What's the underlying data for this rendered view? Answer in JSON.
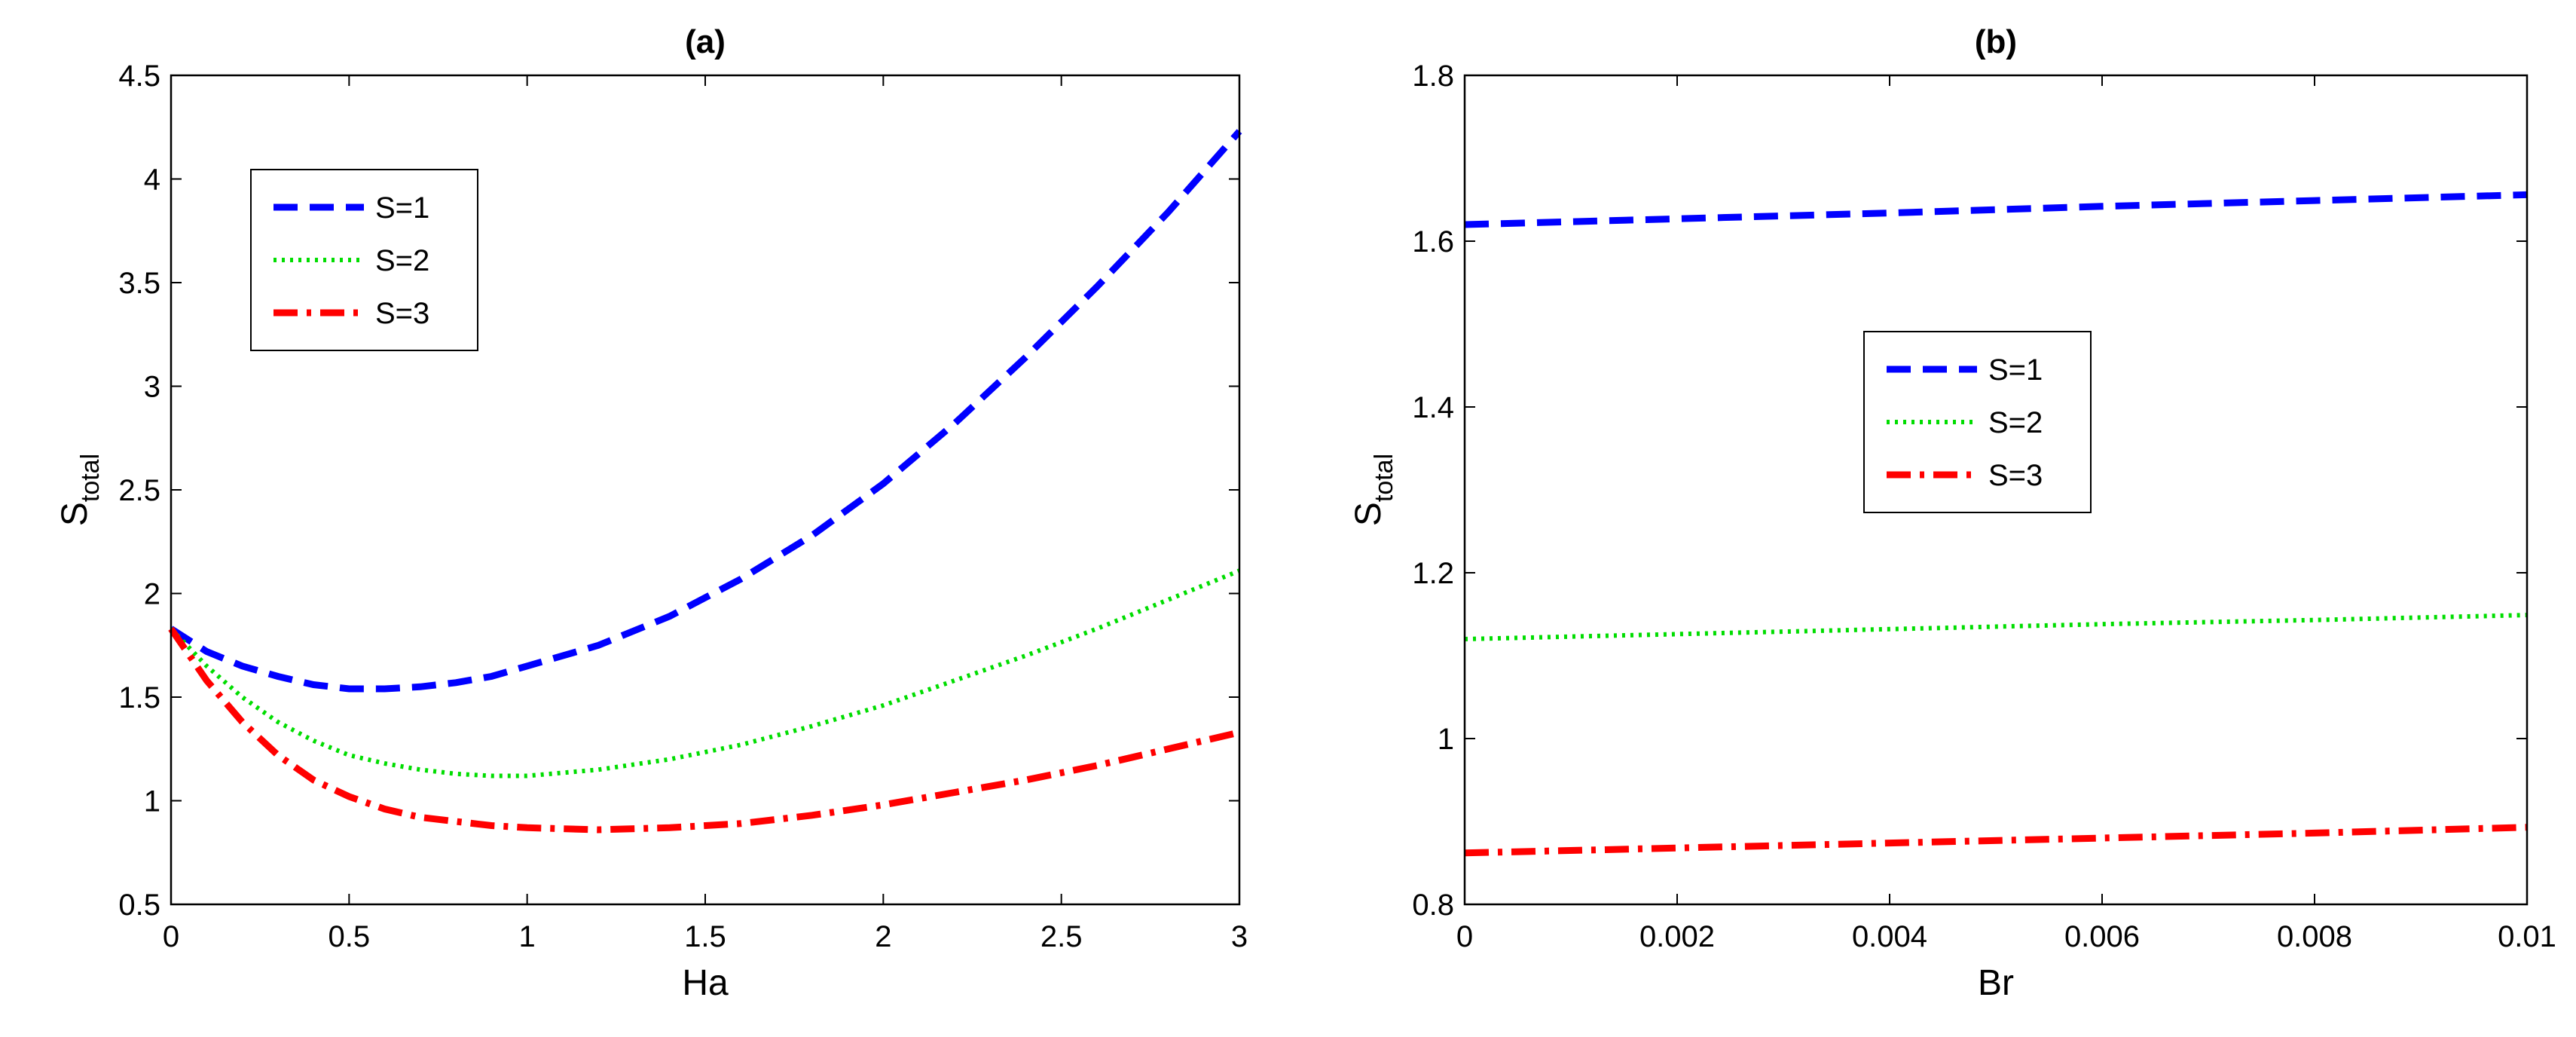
{
  "chart_data": [
    {
      "type": "line",
      "title": "(a)",
      "xlabel": "Ha",
      "ylabel": "S",
      "ylabel_sub": "total",
      "xlim": [
        0,
        3
      ],
      "ylim": [
        0.5,
        4.5
      ],
      "x_ticks": [
        0,
        0.5,
        1,
        1.5,
        2,
        2.5,
        3
      ],
      "y_ticks": [
        0.5,
        1,
        1.5,
        2,
        2.5,
        3,
        3.5,
        4,
        4.5
      ],
      "grid": false,
      "legend_position": "upper-left",
      "series": [
        {
          "name": "S=1",
          "color": "#0000ff",
          "style": "dashed",
          "x": [
            0,
            0.1,
            0.2,
            0.3,
            0.4,
            0.5,
            0.6,
            0.7,
            0.8,
            0.9,
            1.0,
            1.2,
            1.4,
            1.6,
            1.8,
            2.0,
            2.2,
            2.4,
            2.6,
            2.8,
            3.0
          ],
          "y": [
            1.83,
            1.72,
            1.65,
            1.6,
            1.56,
            1.54,
            1.54,
            1.55,
            1.57,
            1.6,
            1.65,
            1.75,
            1.89,
            2.07,
            2.28,
            2.53,
            2.82,
            3.14,
            3.48,
            3.84,
            4.23
          ]
        },
        {
          "name": "S=2",
          "color": "#00dd00",
          "style": "dotted",
          "x": [
            0,
            0.1,
            0.2,
            0.3,
            0.4,
            0.5,
            0.6,
            0.7,
            0.8,
            0.9,
            1.0,
            1.2,
            1.4,
            1.6,
            1.8,
            2.0,
            2.2,
            2.4,
            2.6,
            2.8,
            3.0
          ],
          "y": [
            1.83,
            1.65,
            1.5,
            1.38,
            1.29,
            1.22,
            1.18,
            1.15,
            1.13,
            1.12,
            1.12,
            1.15,
            1.2,
            1.27,
            1.36,
            1.46,
            1.58,
            1.7,
            1.83,
            1.97,
            2.11
          ]
        },
        {
          "name": "S=3",
          "color": "#ff0000",
          "style": "dashdot",
          "x": [
            0,
            0.1,
            0.2,
            0.3,
            0.4,
            0.5,
            0.6,
            0.7,
            0.8,
            0.9,
            1.0,
            1.2,
            1.4,
            1.6,
            1.8,
            2.0,
            2.2,
            2.4,
            2.6,
            2.8,
            3.0
          ],
          "y": [
            1.83,
            1.58,
            1.38,
            1.22,
            1.1,
            1.02,
            0.96,
            0.92,
            0.9,
            0.88,
            0.87,
            0.86,
            0.87,
            0.89,
            0.93,
            0.98,
            1.04,
            1.1,
            1.17,
            1.25,
            1.33
          ]
        }
      ]
    },
    {
      "type": "line",
      "title": "(b)",
      "xlabel": "Br",
      "ylabel": "S",
      "ylabel_sub": "total",
      "xlim": [
        0,
        0.01
      ],
      "ylim": [
        0.8,
        1.8
      ],
      "x_ticks": [
        0,
        0.002,
        0.004,
        0.006,
        0.008,
        0.01
      ],
      "x_tick_labels": [
        "0",
        "0.002",
        "0.004",
        "0.006",
        "0.008",
        "0.01"
      ],
      "y_ticks": [
        0.8,
        1,
        1.2,
        1.4,
        1.6,
        1.8
      ],
      "y_tick_labels": [
        "0.8",
        "1",
        "1.2",
        "1.4",
        "1.6",
        "1.8"
      ],
      "grid": false,
      "legend_position": "center",
      "series": [
        {
          "name": "S=1",
          "color": "#0000ff",
          "style": "dashed",
          "x": [
            0,
            0.002,
            0.004,
            0.006,
            0.008,
            0.01
          ],
          "y": [
            1.62,
            1.627,
            1.634,
            1.642,
            1.649,
            1.656
          ]
        },
        {
          "name": "S=2",
          "color": "#00dd00",
          "style": "dotted",
          "x": [
            0,
            0.002,
            0.004,
            0.006,
            0.008,
            0.01
          ],
          "y": [
            1.12,
            1.126,
            1.132,
            1.138,
            1.143,
            1.149
          ]
        },
        {
          "name": "S=3",
          "color": "#ff0000",
          "style": "dashdot",
          "x": [
            0,
            0.002,
            0.004,
            0.006,
            0.008,
            0.01
          ],
          "y": [
            0.862,
            0.868,
            0.874,
            0.88,
            0.886,
            0.893
          ]
        }
      ]
    }
  ]
}
